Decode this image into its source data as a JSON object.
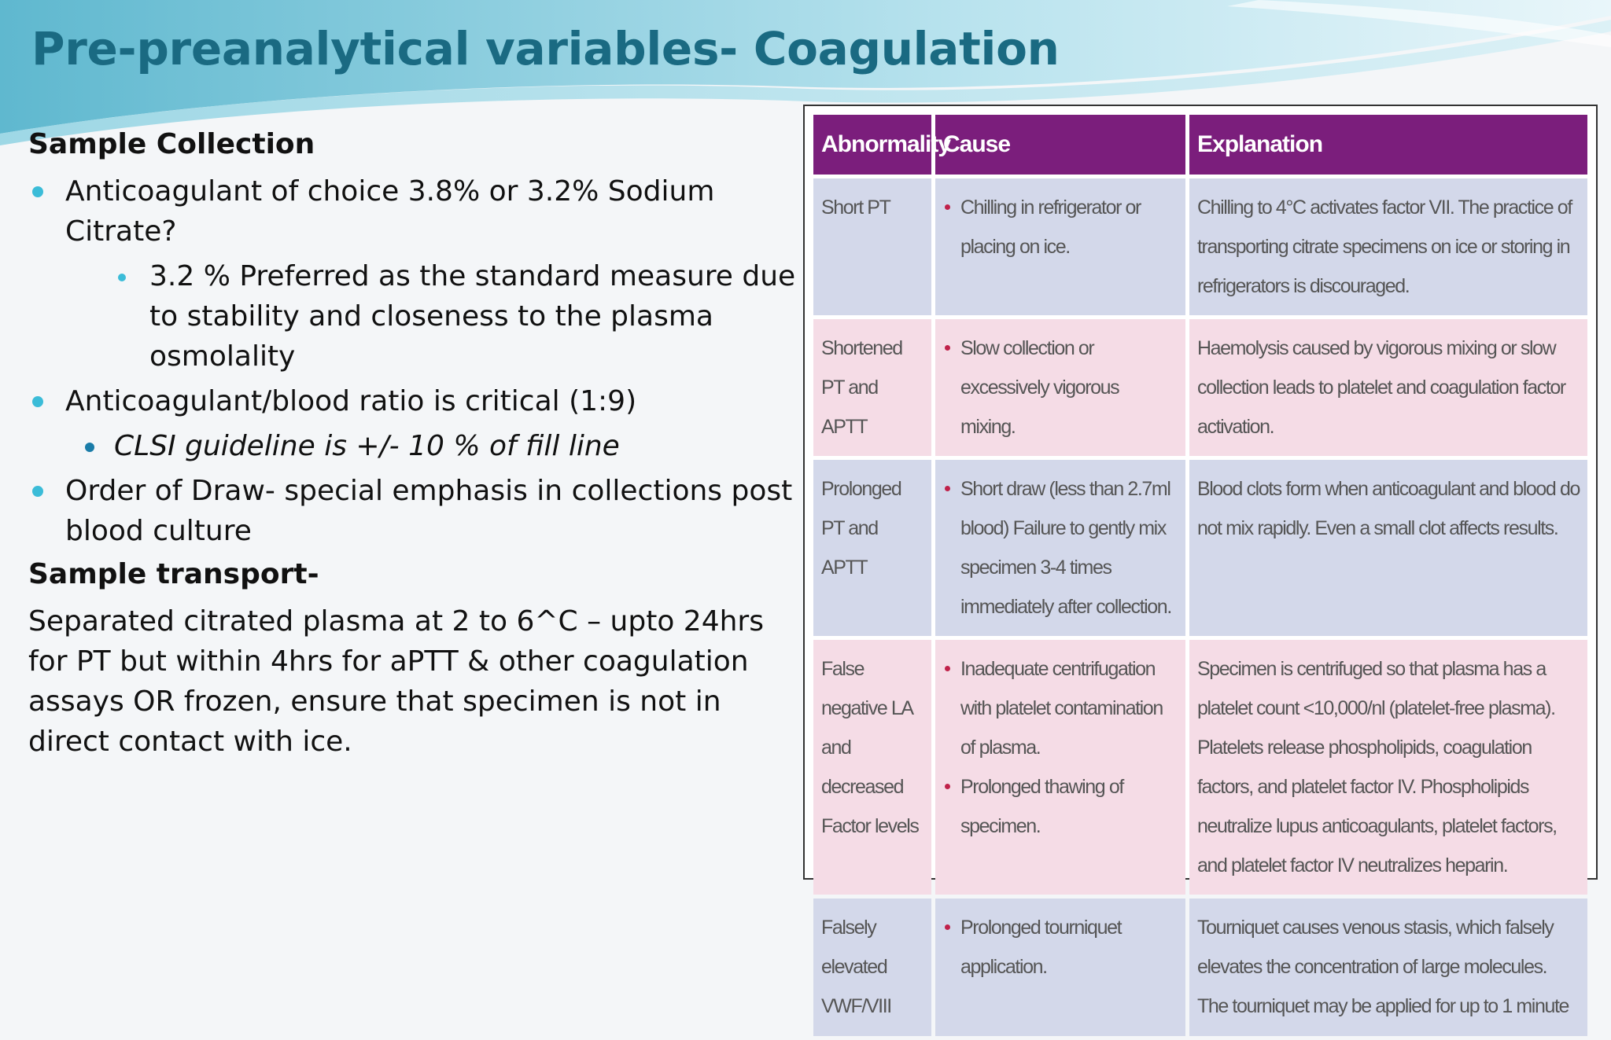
{
  "slide": {
    "title": "Pre-preanalytical variables- Coagulation"
  },
  "left_panel": {
    "heading_collection": "Sample Collection",
    "bullet_anticoagulant": "Anticoagulant of choice  3.8% or 3.2% Sodium Citrate?",
    "sub_preferred": "3.2 % Preferred as the standard measure due to stability and closeness to the plasma osmolality",
    "bullet_ratio": "Anticoagulant/blood ratio is critical (1:9)",
    "sub_clsi": "CLSI guideline is +/- 10 % of fill line",
    "bullet_order": "Order of Draw- special emphasis in collections post blood culture",
    "heading_transport": "Sample transport-",
    "transport_text": "Separated citrated plasma at 2 to 6^C – upto 24hrs for PT but within 4hrs for aPTT & other coagulation assays OR frozen, ensure that specimen is not in direct contact with ice."
  },
  "table": {
    "headers": [
      "Abnormality",
      "Cause",
      "Explanation"
    ],
    "rows": [
      {
        "abnormality": "Short PT",
        "causes": [
          "Chilling in refrigerator or placing on ice."
        ],
        "explanation": "Chilling to 4°C activates factor VII. The practice of transporting citrate specimens on ice or storing in refrigerators is discouraged."
      },
      {
        "abnormality": "Shortened PT and APTT",
        "causes": [
          "Slow collection or excessively vigorous mixing."
        ],
        "explanation": "Haemolysis caused by vigorous mixing or slow collection leads to platelet and coagulation factor activation."
      },
      {
        "abnormality": "Prolonged PT and APTT",
        "causes": [
          "Short draw (less than 2.7ml blood) Failure to gently mix specimen 3-4 times immediately after collection."
        ],
        "explanation": "Blood clots form when anticoagulant and blood do not mix rapidly. Even a small clot affects results."
      },
      {
        "abnormality": "False negative LA and decreased Factor levels",
        "causes": [
          "Inadequate centrifugation with platelet contamination of plasma.",
          "Prolonged thawing of specimen."
        ],
        "explanation": "Specimen is centrifuged so that plasma has a platelet count <10,000/nl (platelet-free plasma). Platelets release phospholipids, coagulation factors, and platelet factor IV. Phospholipids neutralize lupus anticoagulants, platelet factors, and platelet factor IV neutralizes heparin."
      },
      {
        "abnormality": "Falsely elevated VWF/VIII",
        "causes": [
          "Prolonged tourniquet application."
        ],
        "explanation": "Tourniquet causes venous stasis, which falsely elevates the concentration of large molecules. The tourniquet may be applied for up to 1 minute"
      }
    ]
  }
}
